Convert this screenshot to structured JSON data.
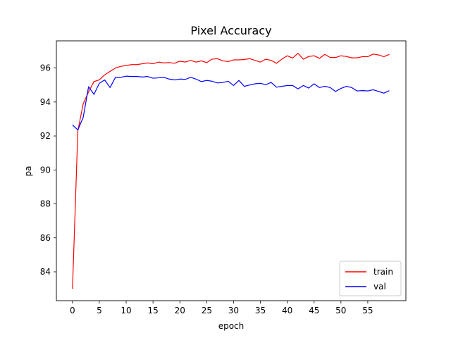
{
  "chart_data": {
    "type": "line",
    "title": "Pixel Accuracy",
    "xlabel": "epoch",
    "ylabel": "pa",
    "xlim": [
      -3,
      62.1
    ],
    "ylim": [
      82.3,
      97.6
    ],
    "xticks": [
      0,
      5,
      10,
      15,
      20,
      25,
      30,
      35,
      40,
      45,
      50,
      55
    ],
    "yticks": [
      84,
      86,
      88,
      90,
      92,
      94,
      96
    ],
    "legend_position": "lower right",
    "grid": false,
    "x": [
      0,
      1,
      2,
      3,
      4,
      5,
      6,
      7,
      8,
      9,
      10,
      11,
      12,
      13,
      14,
      15,
      16,
      17,
      18,
      19,
      20,
      21,
      22,
      23,
      24,
      25,
      26,
      27,
      28,
      29,
      30,
      31,
      32,
      33,
      34,
      35,
      36,
      37,
      38,
      39,
      40,
      41,
      42,
      43,
      44,
      45,
      46,
      47,
      48,
      49,
      50,
      51,
      52,
      53,
      54,
      55,
      56,
      57,
      58,
      59
    ],
    "series": [
      {
        "name": "train",
        "color": "#ff0000",
        "values": [
          83.0,
          92.3,
          93.9,
          94.6,
          95.2,
          95.3,
          95.6,
          95.8,
          96.0,
          96.1,
          96.15,
          96.2,
          96.2,
          96.25,
          96.3,
          96.25,
          96.35,
          96.3,
          96.32,
          96.28,
          96.4,
          96.35,
          96.45,
          96.35,
          96.42,
          96.32,
          96.52,
          96.55,
          96.42,
          96.38,
          96.48,
          96.48,
          96.5,
          96.55,
          96.45,
          96.35,
          96.52,
          96.45,
          96.28,
          96.52,
          96.72,
          96.58,
          96.87,
          96.52,
          96.68,
          96.72,
          96.57,
          96.8,
          96.62,
          96.62,
          96.72,
          96.68,
          96.6,
          96.6,
          96.67,
          96.67,
          96.82,
          96.77,
          96.67,
          96.8
        ]
      },
      {
        "name": "val",
        "color": "#0000ff",
        "values": [
          92.65,
          92.35,
          93.1,
          94.9,
          94.45,
          95.1,
          95.3,
          94.85,
          95.45,
          95.45,
          95.52,
          95.5,
          95.5,
          95.47,
          95.5,
          95.4,
          95.42,
          95.45,
          95.35,
          95.3,
          95.35,
          95.33,
          95.45,
          95.35,
          95.2,
          95.27,
          95.22,
          95.12,
          95.15,
          95.22,
          94.97,
          95.27,
          94.92,
          95.0,
          95.07,
          95.1,
          95.02,
          95.15,
          94.87,
          94.92,
          94.97,
          94.97,
          94.77,
          94.97,
          94.82,
          95.07,
          94.85,
          94.92,
          94.85,
          94.62,
          94.8,
          94.92,
          94.85,
          94.65,
          94.67,
          94.65,
          94.72,
          94.62,
          94.52,
          94.67
        ]
      }
    ]
  }
}
